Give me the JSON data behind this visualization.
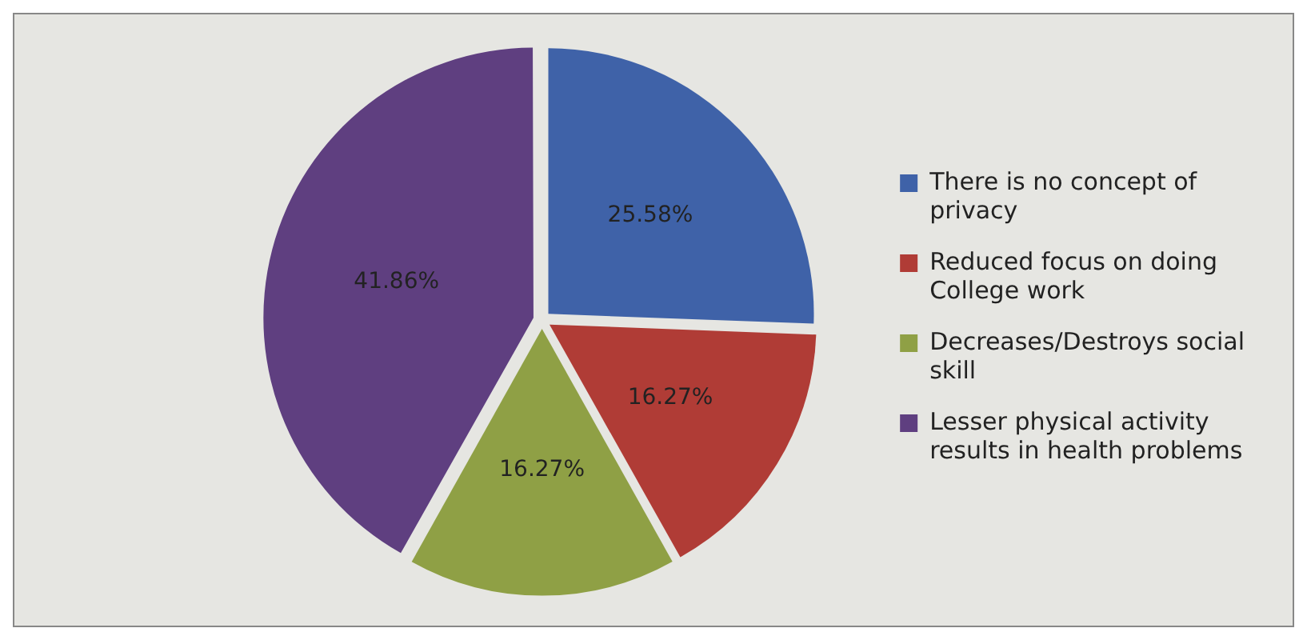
{
  "chart_data": {
    "type": "pie",
    "categories": [
      "There is no concept of privacy",
      "Reduced focus on doing College work",
      "Decreases/Destroys social skill",
      "Lesser physical activity results in health problems"
    ],
    "values": [
      25.58,
      16.27,
      16.27,
      41.86
    ],
    "colors": [
      "#3f62a8",
      "#b03c36",
      "#8fa045",
      "#5f3f80"
    ],
    "value_labels": [
      "25.58%",
      "16.27%",
      "16.27%",
      "41.86%"
    ],
    "legend": "right"
  }
}
